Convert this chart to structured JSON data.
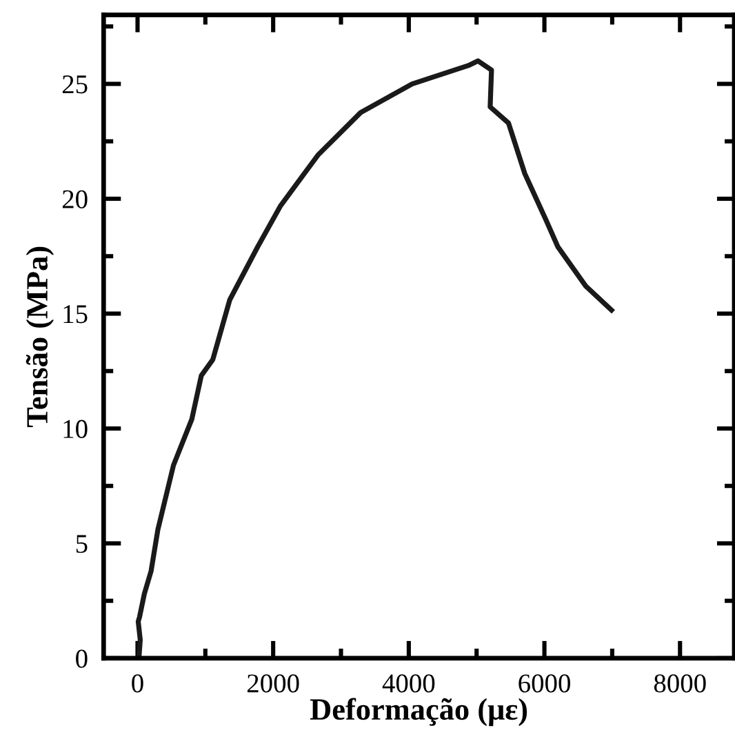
{
  "chart_data": {
    "type": "line",
    "xlabel": "Deformação (με)",
    "ylabel": "Tensão (MPa)",
    "x": [
      20,
      40,
      10,
      30,
      100,
      200,
      300,
      530,
      800,
      940,
      1110,
      1360,
      1770,
      2110,
      2660,
      3290,
      4050,
      4880,
      5020,
      5220,
      5200,
      5470,
      5710,
      6020,
      6200,
      6610,
      6990
    ],
    "series": [
      {
        "color": "#1a1a1a",
        "values": [
          0,
          0.8,
          1.6,
          1.8,
          2.8,
          3.8,
          5.6,
          8.4,
          10.4,
          12.3,
          13.0,
          15.6,
          17.9,
          19.7,
          21.9,
          23.75,
          25.0,
          25.8,
          26.0,
          25.6,
          24.0,
          23.3,
          21.1,
          19.1,
          17.9,
          16.2,
          15.15
        ]
      }
    ],
    "xlim": [
      -500,
      8800
    ],
    "ylim": [
      0,
      28
    ],
    "xticks": [
      0,
      2000,
      4000,
      6000,
      8000
    ],
    "yticks": [
      0,
      5,
      10,
      15,
      20,
      25
    ],
    "grid": false,
    "legend": false,
    "marker": "none",
    "line_style": "solid"
  }
}
